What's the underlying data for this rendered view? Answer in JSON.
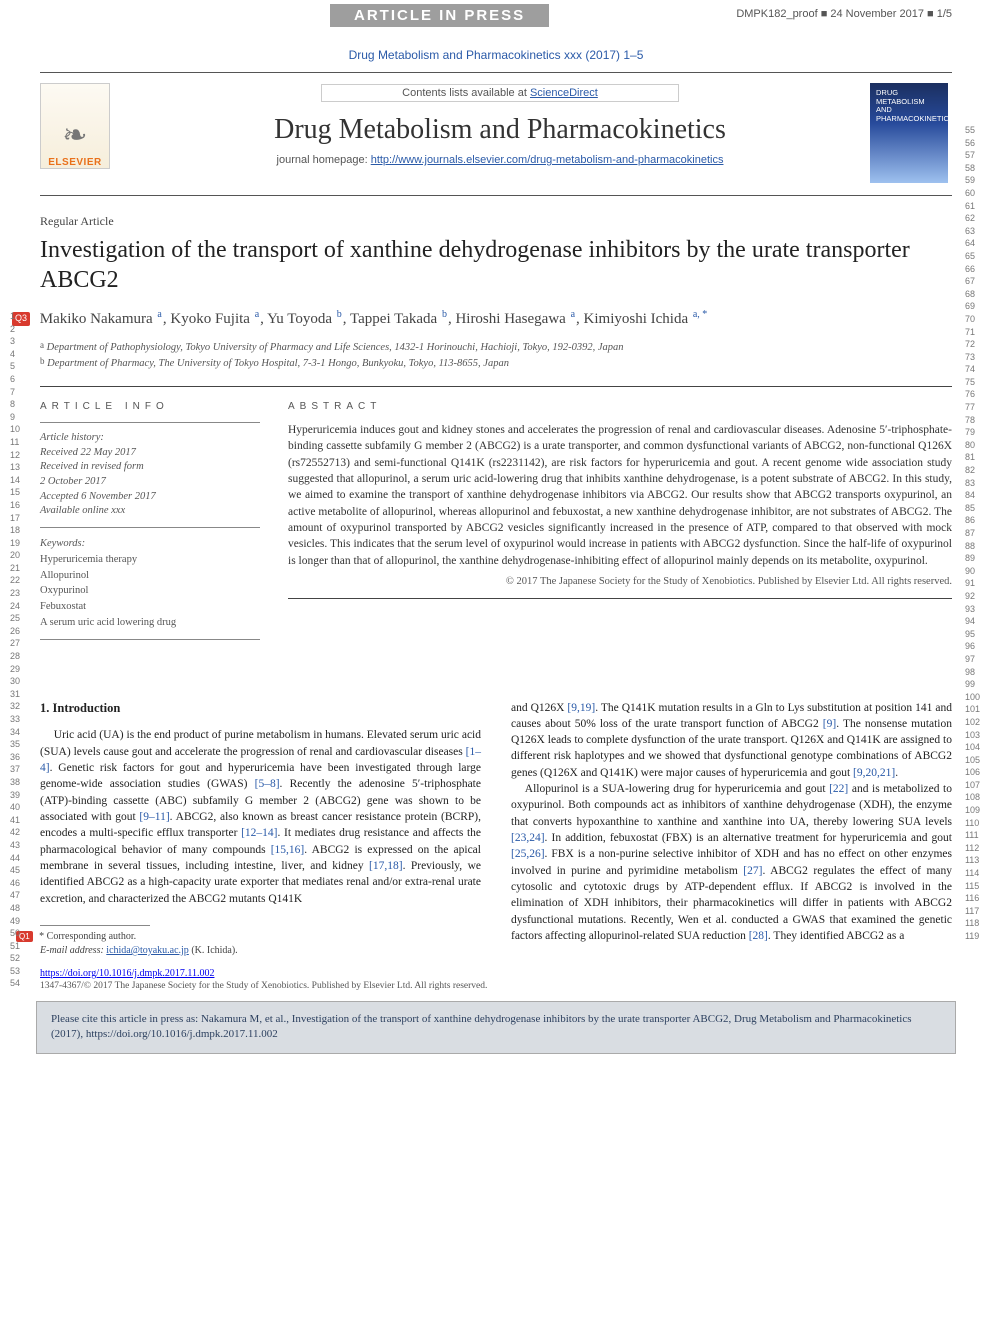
{
  "banner": {
    "aip_text": "ARTICLE IN PRESS",
    "proof_id": "DMPK182_proof ■ 24 November 2017 ■ 1/5"
  },
  "header": {
    "citation_top": "Drug Metabolism and Pharmacokinetics xxx (2017) 1–5",
    "contents_line_prefix": "Contents lists available at ",
    "contents_link": "ScienceDirect",
    "journal_name": "Drug Metabolism and Pharmacokinetics",
    "homepage_label": "journal homepage: ",
    "homepage_url": "http://www.journals.elsevier.com/drug-metabolism-and-pharmacokinetics",
    "logo_text": "ELSEVIER",
    "cover_lines": [
      "DRUG",
      "METABOLISM",
      "AND",
      "PHARMACOKINETICS"
    ]
  },
  "article": {
    "type": "Regular Article",
    "title": "Investigation of the transport of xanthine dehydrogenase inhibitors by the urate transporter ABCG2",
    "q3_label": "Q3",
    "authors_html": "Makiko Nakamura <sup>a</sup>, Kyoko Fujita <sup>a</sup>, Yu Toyoda <sup>b</sup>, Tappei Takada <sup>b</sup>, Hiroshi Hasegawa <sup>a</sup>, Kimiyoshi Ichida <sup>a, *</sup>",
    "affiliations": [
      "a Department of Pathophysiology, Tokyo University of Pharmacy and Life Sciences, 1432-1 Horinouchi, Hachioji, Tokyo, 192-0392, Japan",
      "b Department of Pharmacy, The University of Tokyo Hospital, 7-3-1 Hongo, Bunkyoku, Tokyo, 113-8655, Japan"
    ]
  },
  "labels": {
    "article_info": "ARTICLE INFO",
    "abstract": "ABSTRACT",
    "history_label": "Article history:",
    "keywords_label": "Keywords:"
  },
  "history": [
    "Received 22 May 2017",
    "Received in revised form",
    "2 October 2017",
    "Accepted 6 November 2017",
    "Available online xxx"
  ],
  "keywords": [
    "Hyperuricemia therapy",
    "Allopurinol",
    "Oxypurinol",
    "Febuxostat",
    "A serum uric acid lowering drug"
  ],
  "abstract_text": "Hyperuricemia induces gout and kidney stones and accelerates the progression of renal and cardiovascular diseases. Adenosine 5′-triphosphate-binding cassette subfamily G member 2 (ABCG2) is a urate transporter, and common dysfunctional variants of ABCG2, non-functional Q126X (rs72552713) and semi-functional Q141K (rs2231142), are risk factors for hyperuricemia and gout. A recent genome wide association study suggested that allopurinol, a serum uric acid-lowering drug that inhibits xanthine dehydrogenase, is a potent substrate of ABCG2. In this study, we aimed to examine the transport of xanthine dehydrogenase inhibitors via ABCG2. Our results show that ABCG2 transports oxypurinol, an active metabolite of allopurinol, whereas allopurinol and febuxostat, a new xanthine dehydrogenase inhibitor, are not substrates of ABCG2. The amount of oxypurinol transported by ABCG2 vesicles significantly increased in the presence of ATP, compared to that observed with mock vesicles. This indicates that the serum level of oxypurinol would increase in patients with ABCG2 dysfunction. Since the half-life of oxypurinol is longer than that of allopurinol, the xanthine dehydrogenase-inhibiting effect of allopurinol mainly depends on its metabolite, oxypurinol.",
  "abstract_copyright": "© 2017 The Japanese Society for the Study of Xenobiotics. Published by Elsevier Ltd. All rights reserved.",
  "intro_heading": "1. Introduction",
  "intro_col1": "Uric acid (UA) is the end product of purine metabolism in humans. Elevated serum uric acid (SUA) levels cause gout and accelerate the progression of renal and cardiovascular diseases [1–4]. Genetic risk factors for gout and hyperuricemia have been investigated through large genome-wide association studies (GWAS) [5–8]. Recently the adenosine 5′-triphosphate (ATP)-binding cassette (ABC) subfamily G member 2 (ABCG2) gene was shown to be associated with gout [9–11]. ABCG2, also known as breast cancer resistance protein (BCRP), encodes a multi-specific efflux transporter [12–14]. It mediates drug resistance and affects the pharmacological behavior of many compounds [15,16]. ABCG2 is expressed on the apical membrane in several tissues, including intestine, liver, and kidney [17,18]. Previously, we identified ABCG2 as a high-capacity urate exporter that mediates renal and/or extra-renal urate excretion, and characterized the ABCG2 mutants Q141K",
  "intro_col2": "and Q126X [9,19]. The Q141K mutation results in a Gln to Lys substitution at position 141 and causes about 50% loss of the urate transport function of ABCG2 [9]. The nonsense mutation Q126X leads to complete dysfunction of the urate transport. Q126X and Q141K are assigned to different risk haplotypes and we showed that dysfunctional genotype combinations of ABCG2 genes (Q126X and Q141K) were major causes of hyperuricemia and gout [9,20,21].",
  "intro_col2b": "Allopurinol is a SUA-lowering drug for hyperuricemia and gout [22] and is metabolized to oxypurinol. Both compounds act as inhibitors of xanthine dehydrogenase (XDH), the enzyme that converts hypoxanthine to xanthine and xanthine into UA, thereby lowering SUA levels [23,24]. In addition, febuxostat (FBX) is an alternative treatment for hyperuricemia and gout [25,26]. FBX is a non-purine selective inhibitor of XDH and has no effect on other enzymes involved in purine and pyrimidine metabolism [27]. ABCG2 regulates the effect of many cytosolic and cytotoxic drugs by ATP-dependent efflux. If ABCG2 is involved in the elimination of XDH inhibitors, their pharmacokinetics will differ in patients with ABCG2 dysfunctional mutations. Recently, Wen et al. conducted a GWAS that examined the genetic factors affecting allopurinol-related SUA reduction [28]. They identified ABCG2 as a",
  "footnotes": {
    "q1_label": "Q1",
    "corr_label": "* Corresponding author.",
    "email_label": "E-mail address:",
    "email": "ichida@toyaku.ac.jp",
    "email_who": "(K. Ichida)."
  },
  "doi": "https://doi.org/10.1016/j.dmpk.2017.11.002",
  "issn_line": "1347-4367/© 2017 The Japanese Society for the Study of Xenobiotics. Published by Elsevier Ltd. All rights reserved.",
  "citebox": "Please cite this article in press as: Nakamura M, et al., Investigation of the transport of xanthine dehydrogenase inhibitors by the urate transporter ABCG2, Drug Metabolism and Pharmacokinetics (2017), https://doi.org/10.1016/j.dmpk.2017.11.002",
  "line_numbers": {
    "left_start": 1,
    "left_end": 54,
    "right_start": 55,
    "right_end": 119
  },
  "colors": {
    "link": "#2a5aa8",
    "qmark_bg": "#d83a2e",
    "citebox_bg": "#d9dde2",
    "aip_bg": "#9e9e9e",
    "elsevier_orange": "#e9711c",
    "cover_top": "#1b2f60",
    "cover_mid": "#274a9b",
    "cover_bot": "#9ec1ef"
  },
  "typography": {
    "journal_name_pt": 28,
    "paper_title_pt": 24,
    "authors_pt": 15,
    "body_pt": 11.5,
    "affil_pt": 10.5,
    "linenum_pt": 9
  }
}
